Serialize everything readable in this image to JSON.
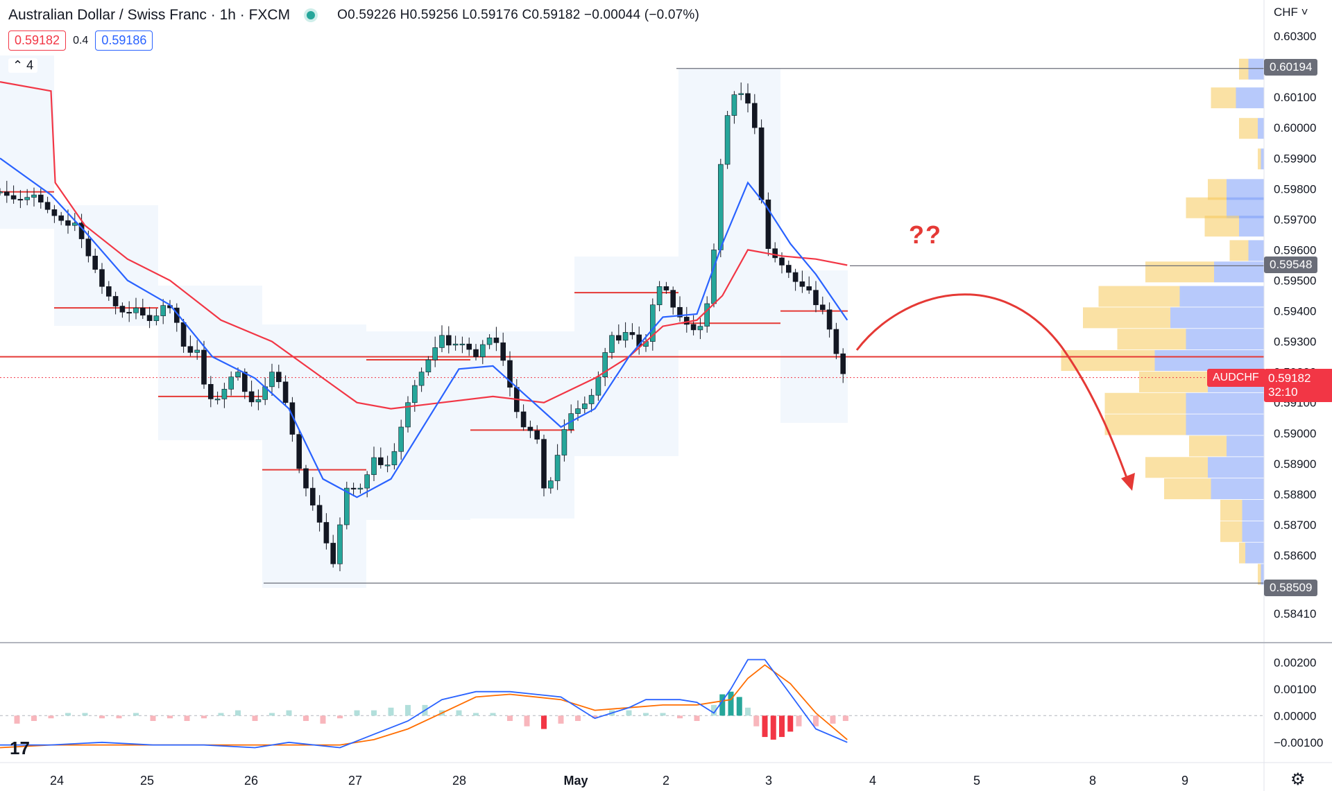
{
  "header": {
    "title": "Australian Dollar / Swiss Franc · 1h · FXCM",
    "ohlc": "O0.59226 H0.59256 L0.59176 C0.59182 −0.00044 (−0.07%)",
    "sell_price": "0.59182",
    "spread": "0.4",
    "buy_price": "0.59186",
    "collapse_label": "⌃ 4"
  },
  "currency_label": "CHF ˅",
  "symbol_tag": "AUDCHF",
  "last_price_label": "0.59182",
  "countdown_label": "32:10",
  "annotation_text": "??",
  "logo_text": "17",
  "gear_icon": "gear-icon",
  "price_labels": {
    "high": "0.60194",
    "resistance": "0.59548",
    "low": "0.58509"
  },
  "colors": {
    "bull": "#26a69a",
    "bear": "#f23645",
    "ema_fast": "#2962ff",
    "ema_slow": "#f23645",
    "arrow": "#e53935",
    "vp_up": "#f5c95a",
    "vp_down": "#7b9cf7"
  },
  "chart_data": [
    {
      "type": "candlestick",
      "symbol": "AUDCHF",
      "timeframe": "1h",
      "ylim": [
        0.5833,
        0.6035
      ],
      "y_ticks": [
        "0.60300",
        "0.60100",
        "0.60000",
        "0.59900",
        "0.59800",
        "0.59700",
        "0.59600",
        "0.59500",
        "0.59400",
        "0.59300",
        "0.59200",
        "0.59100",
        "0.59000",
        "0.58900",
        "0.58800",
        "0.58700",
        "0.58600",
        "0.58410"
      ],
      "x_ticks": [
        "24",
        "25",
        "26",
        "27",
        "28",
        "May",
        "2",
        "3",
        "4",
        "5",
        "8",
        "9"
      ],
      "key_levels": {
        "high": 0.60194,
        "resistance": 0.59548,
        "pivot": 0.5925,
        "low": 0.58509
      },
      "path_close": [
        [
          0,
          0.5979
        ],
        [
          20,
          0.5976
        ],
        [
          40,
          0.5978
        ],
        [
          60,
          0.5972
        ],
        [
          70,
          0.597
        ],
        [
          80,
          0.5968
        ],
        [
          90,
          0.5969
        ],
        [
          100,
          0.596
        ],
        [
          110,
          0.5955
        ],
        [
          120,
          0.5948
        ],
        [
          130,
          0.5944
        ],
        [
          140,
          0.594
        ],
        [
          150,
          0.5939
        ],
        [
          160,
          0.5941
        ],
        [
          170,
          0.5938
        ],
        [
          180,
          0.5936
        ],
        [
          190,
          0.5942
        ],
        [
          200,
          0.5941
        ],
        [
          210,
          0.5935
        ],
        [
          220,
          0.5924
        ],
        [
          230,
          0.593
        ],
        [
          240,
          0.5916
        ],
        [
          250,
          0.591
        ],
        [
          260,
          0.5912
        ],
        [
          270,
          0.5918
        ],
        [
          280,
          0.592
        ],
        [
          290,
          0.5912
        ],
        [
          300,
          0.5909
        ],
        [
          310,
          0.5914
        ],
        [
          320,
          0.592
        ],
        [
          330,
          0.5916
        ],
        [
          340,
          0.5906
        ],
        [
          350,
          0.589
        ],
        [
          360,
          0.5882
        ],
        [
          370,
          0.5875
        ],
        [
          380,
          0.5868
        ],
        [
          390,
          0.5858
        ],
        [
          395,
          0.5856
        ],
        [
          400,
          0.587
        ],
        [
          410,
          0.5885
        ],
        [
          420,
          0.588
        ],
        [
          430,
          0.5885
        ],
        [
          440,
          0.5892
        ],
        [
          450,
          0.5889
        ],
        [
          460,
          0.589
        ],
        [
          470,
          0.59
        ],
        [
          480,
          0.591
        ],
        [
          490,
          0.5917
        ],
        [
          500,
          0.5922
        ],
        [
          510,
          0.5927
        ],
        [
          520,
          0.5932
        ],
        [
          530,
          0.5928
        ],
        [
          540,
          0.593
        ],
        [
          550,
          0.5928
        ],
        [
          560,
          0.5925
        ],
        [
          570,
          0.593
        ],
        [
          580,
          0.5932
        ],
        [
          590,
          0.5926
        ],
        [
          600,
          0.5915
        ],
        [
          610,
          0.5905
        ],
        [
          620,
          0.59
        ],
        [
          630,
          0.5902
        ],
        [
          640,
          0.5882
        ],
        [
          650,
          0.5885
        ],
        [
          660,
          0.5898
        ],
        [
          670,
          0.5906
        ],
        [
          680,
          0.5908
        ],
        [
          690,
          0.591
        ],
        [
          700,
          0.5914
        ],
        [
          710,
          0.5925
        ],
        [
          720,
          0.5932
        ],
        [
          730,
          0.593
        ],
        [
          740,
          0.5935
        ],
        [
          750,
          0.5928
        ],
        [
          760,
          0.593
        ],
        [
          770,
          0.5945
        ],
        [
          780,
          0.595
        ],
        [
          790,
          0.5942
        ],
        [
          800,
          0.5938
        ],
        [
          810,
          0.5935
        ],
        [
          820,
          0.5933
        ],
        [
          830,
          0.5938
        ],
        [
          840,
          0.596
        ],
        [
          850,
          0.5995
        ],
        [
          860,
          0.601
        ],
        [
          870,
          0.6012
        ],
        [
          880,
          0.6008
        ],
        [
          890,
          0.5998
        ],
        [
          900,
          0.5962
        ],
        [
          910,
          0.5958
        ],
        [
          920,
          0.5955
        ],
        [
          930,
          0.5952
        ],
        [
          940,
          0.5948
        ],
        [
          950,
          0.5948
        ],
        [
          960,
          0.5942
        ],
        [
          970,
          0.594
        ],
        [
          980,
          0.593
        ],
        [
          990,
          0.592
        ],
        [
          997,
          0.5918
        ]
      ],
      "ema_fast": [
        [
          0,
          0.599
        ],
        [
          60,
          0.5978
        ],
        [
          100,
          0.5966
        ],
        [
          150,
          0.595
        ],
        [
          200,
          0.5942
        ],
        [
          250,
          0.5925
        ],
        [
          300,
          0.5918
        ],
        [
          340,
          0.5908
        ],
        [
          380,
          0.5885
        ],
        [
          420,
          0.5879
        ],
        [
          460,
          0.5885
        ],
        [
          500,
          0.5903
        ],
        [
          540,
          0.5921
        ],
        [
          580,
          0.5922
        ],
        [
          620,
          0.5912
        ],
        [
          660,
          0.5902
        ],
        [
          700,
          0.5908
        ],
        [
          740,
          0.5925
        ],
        [
          780,
          0.5938
        ],
        [
          820,
          0.5939
        ],
        [
          850,
          0.5962
        ],
        [
          880,
          0.5982
        ],
        [
          900,
          0.5975
        ],
        [
          930,
          0.5962
        ],
        [
          960,
          0.5952
        ],
        [
          997,
          0.5937
        ]
      ],
      "ema_slow": [
        [
          0,
          0.6015
        ],
        [
          60,
          0.6012
        ],
        [
          65,
          0.5982
        ],
        [
          100,
          0.5968
        ],
        [
          150,
          0.5957
        ],
        [
          200,
          0.595
        ],
        [
          260,
          0.5937
        ],
        [
          320,
          0.593
        ],
        [
          380,
          0.5918
        ],
        [
          420,
          0.591
        ],
        [
          460,
          0.5908
        ],
        [
          520,
          0.591
        ],
        [
          580,
          0.5912
        ],
        [
          640,
          0.591
        ],
        [
          700,
          0.5918
        ],
        [
          740,
          0.5925
        ],
        [
          780,
          0.5935
        ],
        [
          820,
          0.5937
        ],
        [
          850,
          0.5945
        ],
        [
          880,
          0.596
        ],
        [
          920,
          0.5958
        ],
        [
          960,
          0.5957
        ],
        [
          997,
          0.5955
        ]
      ],
      "volume_profile_bars": [
        {
          "price": 0.60194,
          "up": 0.3,
          "down": 0.5
        },
        {
          "price": 0.601,
          "up": 0.8,
          "down": 0.9
        },
        {
          "price": 0.6,
          "up": 0.6,
          "down": 0.2
        },
        {
          "price": 0.599,
          "up": 0.1,
          "down": 0.1
        },
        {
          "price": 0.598,
          "up": 0.6,
          "down": 1.2
        },
        {
          "price": 0.5974,
          "up": 1.3,
          "down": 1.2
        },
        {
          "price": 0.5968,
          "up": 1.1,
          "down": 0.8
        },
        {
          "price": 0.596,
          "up": 0.6,
          "down": 0.5
        },
        {
          "price": 0.5953,
          "up": 2.2,
          "down": 1.6
        },
        {
          "price": 0.5945,
          "up": 2.6,
          "down": 2.7
        },
        {
          "price": 0.5938,
          "up": 2.8,
          "down": 3.0
        },
        {
          "price": 0.5931,
          "up": 2.2,
          "down": 2.5
        },
        {
          "price": 0.5924,
          "up": 3.0,
          "down": 3.5
        },
        {
          "price": 0.5917,
          "up": 2.2,
          "down": 1.8
        },
        {
          "price": 0.591,
          "up": 2.6,
          "down": 2.5
        },
        {
          "price": 0.5903,
          "up": 2.6,
          "down": 2.5
        },
        {
          "price": 0.5896,
          "up": 1.2,
          "down": 1.2
        },
        {
          "price": 0.5889,
          "up": 2.0,
          "down": 1.8
        },
        {
          "price": 0.5882,
          "up": 1.5,
          "down": 1.7
        },
        {
          "price": 0.5875,
          "up": 0.7,
          "down": 0.7
        },
        {
          "price": 0.5868,
          "up": 0.7,
          "down": 0.7
        },
        {
          "price": 0.5861,
          "up": 0.2,
          "down": 0.6
        },
        {
          "price": 0.5854,
          "up": 0.1,
          "down": 0.1
        }
      ]
    },
    {
      "type": "macd",
      "ylim": [
        -0.0015,
        0.0024
      ],
      "y_ticks": [
        "0.00200",
        "0.00100",
        "0.00000",
        "−0.00100"
      ],
      "macd_line": [
        [
          0,
          -0.0011
        ],
        [
          60,
          -0.0011
        ],
        [
          120,
          -0.001
        ],
        [
          180,
          -0.0011
        ],
        [
          240,
          -0.0011
        ],
        [
          300,
          -0.0012
        ],
        [
          340,
          -0.001
        ],
        [
          400,
          -0.0012
        ],
        [
          440,
          -0.0007
        ],
        [
          480,
          -0.0002
        ],
        [
          520,
          0.0006
        ],
        [
          560,
          0.0009
        ],
        [
          600,
          0.0009
        ],
        [
          660,
          0.0007
        ],
        [
          700,
          -0.0001
        ],
        [
          740,
          0.0003
        ],
        [
          760,
          0.0006
        ],
        [
          800,
          0.0006
        ],
        [
          820,
          0.0005
        ],
        [
          840,
          0.0001
        ],
        [
          860,
          0.001
        ],
        [
          880,
          0.0021
        ],
        [
          900,
          0.0021
        ],
        [
          930,
          0.0008
        ],
        [
          960,
          -0.0005
        ],
        [
          997,
          -0.001
        ]
      ],
      "signal_line": [
        [
          0,
          -0.0012
        ],
        [
          60,
          -0.0011
        ],
        [
          120,
          -0.0011
        ],
        [
          180,
          -0.0011
        ],
        [
          240,
          -0.0011
        ],
        [
          300,
          -0.0011
        ],
        [
          360,
          -0.0011
        ],
        [
          400,
          -0.0011
        ],
        [
          440,
          -0.0009
        ],
        [
          480,
          -0.0005
        ],
        [
          520,
          0.0001
        ],
        [
          560,
          0.0007
        ],
        [
          600,
          0.0008
        ],
        [
          660,
          0.0006
        ],
        [
          700,
          0.0002
        ],
        [
          740,
          0.0003
        ],
        [
          780,
          0.0004
        ],
        [
          820,
          0.0004
        ],
        [
          860,
          0.0006
        ],
        [
          880,
          0.0014
        ],
        [
          900,
          0.0019
        ],
        [
          930,
          0.0012
        ],
        [
          960,
          0.0001
        ],
        [
          997,
          -0.0009
        ]
      ],
      "histogram": [
        [
          20,
          -0.0003
        ],
        [
          40,
          -0.0002
        ],
        [
          60,
          -0.0001
        ],
        [
          80,
          0.0001
        ],
        [
          100,
          0.0001
        ],
        [
          120,
          -0.0001
        ],
        [
          140,
          -0.0001
        ],
        [
          160,
          0.0001
        ],
        [
          180,
          -0.0002
        ],
        [
          200,
          -0.0001
        ],
        [
          220,
          -0.0002
        ],
        [
          240,
          -0.0001
        ],
        [
          260,
          0.0001
        ],
        [
          280,
          0.0002
        ],
        [
          300,
          -0.0002
        ],
        [
          320,
          0.0001
        ],
        [
          340,
          0.0002
        ],
        [
          360,
          -0.0002
        ],
        [
          380,
          -0.0003
        ],
        [
          400,
          -0.0001
        ],
        [
          420,
          0.0002
        ],
        [
          440,
          0.0002
        ],
        [
          460,
          0.0003
        ],
        [
          480,
          0.0004
        ],
        [
          500,
          0.0004
        ],
        [
          520,
          0.0002
        ],
        [
          540,
          0.0002
        ],
        [
          560,
          0.0001
        ],
        [
          580,
          0.0001
        ],
        [
          600,
          -0.0002
        ],
        [
          620,
          -0.0004
        ],
        [
          640,
          -0.0005
        ],
        [
          660,
          -0.0003
        ],
        [
          680,
          -0.0002
        ],
        [
          700,
          -0.0001
        ],
        [
          720,
          0.0002
        ],
        [
          740,
          0.0002
        ],
        [
          760,
          0.0001
        ],
        [
          780,
          0.0001
        ],
        [
          800,
          -0.0001
        ],
        [
          820,
          -0.0002
        ],
        [
          840,
          0.0004
        ],
        [
          850,
          0.0008
        ],
        [
          860,
          0.0009
        ],
        [
          870,
          0.0007
        ],
        [
          880,
          0.0003
        ],
        [
          890,
          -0.0004
        ],
        [
          900,
          -0.0008
        ],
        [
          910,
          -0.0009
        ],
        [
          920,
          -0.0008
        ],
        [
          930,
          -0.0006
        ],
        [
          940,
          -0.0004
        ],
        [
          960,
          -0.0004
        ],
        [
          980,
          -0.0003
        ],
        [
          995,
          -0.0002
        ]
      ]
    }
  ]
}
